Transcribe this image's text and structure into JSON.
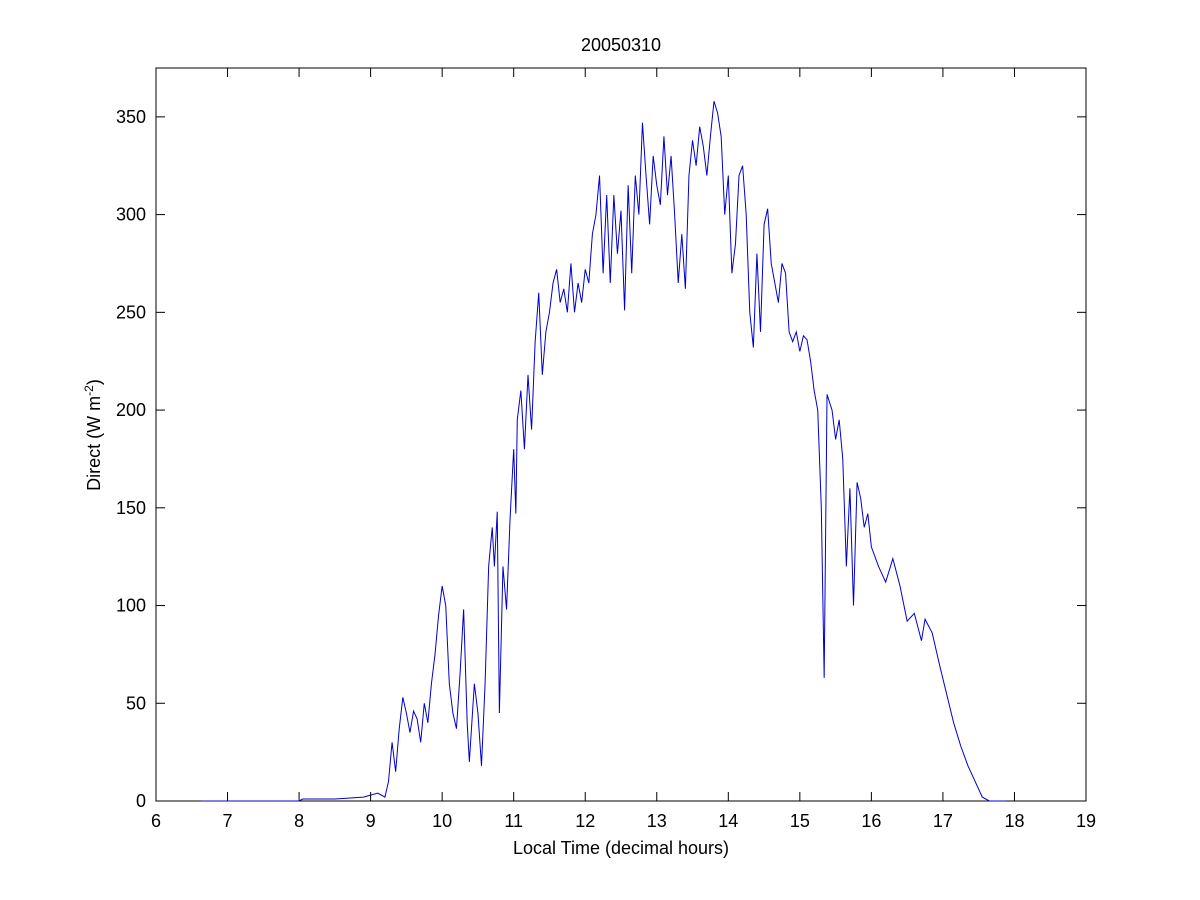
{
  "chart_data": {
    "type": "line",
    "title": "20050310",
    "x_label": "Local Time (decimal hours)",
    "y_label": {
      "text": "Direct (W m",
      "superscript": "-2",
      "suffix": ")"
    },
    "xlim": [
      6,
      19
    ],
    "ylim": [
      0,
      375
    ],
    "xticks": [
      6,
      7,
      8,
      9,
      10,
      11,
      12,
      13,
      14,
      15,
      16,
      17,
      18,
      19
    ],
    "yticks": [
      0,
      50,
      100,
      150,
      200,
      250,
      300,
      350
    ],
    "grid": false,
    "series": [
      {
        "color": "#0000cc",
        "x": [
          6.63,
          8.0,
          8.05,
          8.5,
          8.9,
          9.0,
          9.1,
          9.2,
          9.25,
          9.3,
          9.35,
          9.4,
          9.45,
          9.5,
          9.55,
          9.6,
          9.65,
          9.7,
          9.75,
          9.8,
          9.85,
          9.9,
          9.95,
          10.0,
          10.05,
          10.1,
          10.15,
          10.2,
          10.25,
          10.3,
          10.35,
          10.38,
          10.45,
          10.5,
          10.55,
          10.6,
          10.65,
          10.7,
          10.73,
          10.77,
          10.8,
          10.85,
          10.9,
          10.95,
          11.0,
          11.03,
          11.05,
          11.1,
          11.15,
          11.2,
          11.25,
          11.3,
          11.35,
          11.4,
          11.45,
          11.5,
          11.55,
          11.6,
          11.65,
          11.7,
          11.75,
          11.8,
          11.85,
          11.9,
          11.95,
          12.0,
          12.05,
          12.1,
          12.15,
          12.2,
          12.25,
          12.3,
          12.35,
          12.4,
          12.45,
          12.5,
          12.55,
          12.6,
          12.65,
          12.7,
          12.75,
          12.8,
          12.85,
          12.9,
          12.95,
          13.0,
          13.05,
          13.1,
          13.15,
          13.2,
          13.25,
          13.3,
          13.35,
          13.4,
          13.45,
          13.5,
          13.55,
          13.6,
          13.65,
          13.7,
          13.75,
          13.8,
          13.85,
          13.9,
          13.95,
          14.0,
          14.05,
          14.1,
          14.15,
          14.2,
          14.25,
          14.3,
          14.35,
          14.4,
          14.45,
          14.5,
          14.55,
          14.6,
          14.65,
          14.7,
          14.75,
          14.8,
          14.85,
          14.9,
          14.95,
          15.0,
          15.05,
          15.1,
          15.15,
          15.2,
          15.25,
          15.3,
          15.34,
          15.38,
          15.45,
          15.5,
          15.55,
          15.6,
          15.65,
          15.7,
          15.75,
          15.8,
          15.85,
          15.9,
          15.95,
          16.0,
          16.1,
          16.2,
          16.3,
          16.4,
          16.5,
          16.6,
          16.7,
          16.75,
          16.85,
          16.95,
          17.05,
          17.15,
          17.25,
          17.35,
          17.45,
          17.55,
          17.65,
          17.88
        ],
        "values": [
          0,
          0,
          1,
          1,
          2,
          3,
          4,
          2,
          10,
          30,
          15,
          37,
          53,
          45,
          35,
          46,
          42,
          30,
          50,
          40,
          60,
          75,
          95,
          110,
          100,
          60,
          45,
          37,
          65,
          98,
          40,
          20,
          60,
          45,
          18,
          60,
          120,
          140,
          120,
          148,
          45,
          120,
          98,
          145,
          180,
          147,
          195,
          210,
          180,
          218,
          190,
          235,
          260,
          218,
          240,
          250,
          265,
          272,
          255,
          262,
          250,
          275,
          250,
          265,
          255,
          272,
          265,
          290,
          300,
          320,
          270,
          310,
          265,
          310,
          280,
          302,
          251,
          315,
          270,
          320,
          300,
          347,
          320,
          295,
          330,
          315,
          305,
          340,
          310,
          330,
          300,
          265,
          290,
          262,
          320,
          338,
          325,
          345,
          335,
          320,
          340,
          358,
          352,
          340,
          300,
          320,
          270,
          285,
          320,
          325,
          300,
          250,
          232,
          280,
          240,
          295,
          303,
          275,
          265,
          255,
          275,
          270,
          240,
          235,
          240,
          230,
          238,
          236,
          225,
          210,
          200,
          150,
          63,
          208,
          200,
          185,
          195,
          175,
          120,
          160,
          100,
          163,
          155,
          140,
          147,
          130,
          120,
          112,
          124,
          110,
          92,
          96,
          82,
          93,
          86,
          70,
          55,
          40,
          28,
          18,
          10,
          2,
          0,
          0
        ]
      }
    ]
  }
}
